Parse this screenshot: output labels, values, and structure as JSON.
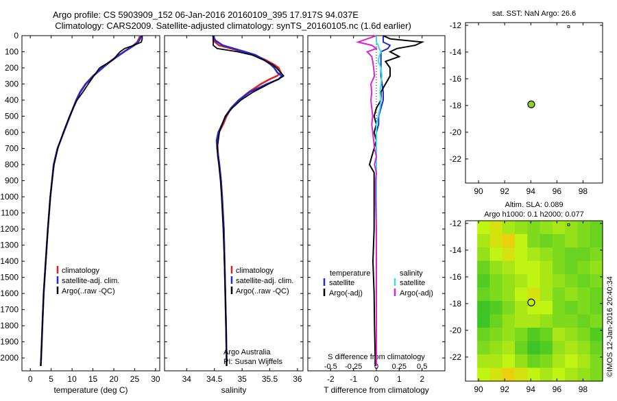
{
  "title": {
    "line1": "Argo profile: CS 5903909_152 06-Jan-2016 20160109_395 17.917S 94.037E",
    "line2": "Climatology: CARS2009. Satellite-adjusted climatology: synTS_20160105.nc (1.6d earlier)"
  },
  "colors": {
    "climatology": "#e11f1f",
    "satellite": "#1f2ad6",
    "argo": "#000000",
    "sal_satellite": "#2fe0e6",
    "sal_argo": "#e020d8",
    "marker_fill": "#8fd12a"
  },
  "annotations": {
    "owner": "Argo Australia",
    "pi": "PI: Susan Wijffels",
    "stamp": "©IMOS 12-Jan-2016 20:40:34"
  },
  "chart_data": [
    {
      "id": "temperature",
      "type": "line",
      "xlabel": "temperature (deg C)",
      "xlim": [
        -2,
        31
      ],
      "xticks": [
        0,
        5,
        10,
        15,
        20,
        25,
        30
      ],
      "ylim": [
        0,
        2080
      ],
      "yticks": [
        0,
        100,
        200,
        300,
        400,
        500,
        600,
        700,
        800,
        900,
        1000,
        1100,
        1200,
        1300,
        1400,
        1500,
        1600,
        1700,
        1800,
        1900,
        2000
      ],
      "legend": [
        "climatology",
        "satellite-adj. clim.",
        "Argo(..raw -QC)"
      ],
      "depth": [
        0,
        20,
        40,
        60,
        80,
        100,
        150,
        200,
        250,
        300,
        350,
        400,
        500,
        600,
        700,
        800,
        900,
        1000,
        1200,
        1400,
        1600,
        1800,
        2000,
        2050
      ],
      "series": [
        {
          "name": "climatology",
          "color_key": "climatology",
          "values": [
            26.3,
            26.0,
            25.6,
            24.7,
            23.6,
            22.4,
            19.6,
            17.2,
            15.0,
            13.2,
            11.9,
            11.0,
            9.5,
            8.0,
            6.5,
            5.6,
            5.2,
            4.8,
            4.2,
            3.7,
            3.2,
            2.9,
            2.6,
            2.5
          ]
        },
        {
          "name": "satellite-adj. clim.",
          "color_key": "satellite",
          "values": [
            26.6,
            26.3,
            25.8,
            24.9,
            23.7,
            22.5,
            19.7,
            17.3,
            15.1,
            13.3,
            12.0,
            11.0,
            9.5,
            8.0,
            6.5,
            5.6,
            5.2,
            4.8,
            4.2,
            3.7,
            3.2,
            2.9,
            2.6,
            2.5
          ]
        },
        {
          "name": "Argo(..raw -QC)",
          "color_key": "argo",
          "values": [
            26.8,
            26.8,
            26.6,
            24.8,
            22.6,
            21.5,
            19.8,
            16.6,
            15.2,
            13.9,
            12.6,
            11.2,
            9.4,
            7.9,
            6.6,
            5.7,
            5.2,
            4.8,
            4.2,
            3.7,
            3.2,
            2.9,
            2.6,
            2.5
          ]
        }
      ]
    },
    {
      "id": "salinity",
      "type": "line",
      "xlabel": "salinity",
      "xlim": [
        33.6,
        36.1
      ],
      "xticks": [
        34,
        34.5,
        35,
        35.5,
        36
      ],
      "ylim": [
        0,
        2080
      ],
      "legend": [
        "climatology",
        "satellite-adj. clim.",
        "Argo(..raw -QC)"
      ],
      "depth": [
        0,
        30,
        60,
        80,
        100,
        120,
        150,
        180,
        200,
        230,
        250,
        270,
        300,
        350,
        400,
        450,
        500,
        550,
        600,
        650,
        700,
        750,
        800,
        900,
        1000,
        1200,
        1500,
        1800,
        2000,
        2050
      ],
      "series": [
        {
          "name": "climatology",
          "color_key": "climatology",
          "values": [
            34.48,
            34.48,
            34.58,
            34.8,
            35.02,
            35.22,
            35.42,
            35.58,
            35.66,
            35.7,
            35.63,
            35.5,
            35.34,
            35.12,
            34.94,
            34.8,
            34.72,
            34.66,
            34.58,
            34.55,
            34.56,
            34.57,
            34.59,
            34.62,
            34.64,
            34.67,
            34.69,
            34.71,
            34.72,
            34.72
          ]
        },
        {
          "name": "satellite-adj. clim.",
          "color_key": "satellite",
          "values": [
            34.47,
            34.52,
            34.65,
            34.85,
            35.05,
            35.24,
            35.4,
            35.52,
            35.58,
            35.64,
            35.72,
            35.66,
            35.45,
            35.14,
            34.94,
            34.8,
            34.7,
            34.64,
            34.57,
            34.54,
            34.55,
            34.57,
            34.59,
            34.62,
            34.64,
            34.67,
            34.69,
            34.71,
            34.72,
            34.72
          ]
        },
        {
          "name": "Argo(..raw -QC)",
          "color_key": "argo",
          "values": [
            34.48,
            34.48,
            34.48,
            34.55,
            34.92,
            35.18,
            35.38,
            35.55,
            35.62,
            35.7,
            35.75,
            35.66,
            35.48,
            35.2,
            34.98,
            34.82,
            34.7,
            34.64,
            34.59,
            34.57,
            34.55,
            34.56,
            34.58,
            34.61,
            34.63,
            34.66,
            34.69,
            34.71,
            34.72,
            34.72
          ]
        }
      ]
    },
    {
      "id": "difference",
      "type": "line",
      "xlabel": "T difference from climatology",
      "top_label": "S difference from climatology",
      "xlim_T": [
        -3,
        3
      ],
      "xticks_T": [
        -2,
        -1,
        0,
        1,
        2
      ],
      "xlim_S": [
        -0.75,
        0.75
      ],
      "xticks_S": [
        "-0.5",
        "-0.25",
        "0",
        "0.25",
        "0.5"
      ],
      "legend_headers": [
        "temperature",
        "salinity"
      ],
      "legend": [
        "satellite",
        "Argo(-adj)",
        "satellite",
        "Argo(-adj)"
      ],
      "depth": [
        0,
        20,
        40,
        60,
        80,
        100,
        130,
        160,
        200,
        250,
        300,
        350,
        400,
        450,
        500,
        550,
        600,
        650,
        700,
        750,
        800,
        850,
        900,
        1000,
        1200,
        1400,
        1600,
        1800,
        2000,
        2050
      ],
      "series": [
        {
          "name": "satellite",
          "group": "temperature",
          "color_key": "satellite",
          "values": [
            0.3,
            0.3,
            0.3,
            0.6,
            0.5,
            0.2,
            0.2,
            0.2,
            0.2,
            0.2,
            0.25,
            0.3,
            0.3,
            0.2,
            0.1,
            0.1,
            0.0,
            0.0,
            0.0,
            0.0,
            0.0,
            0.0,
            0.0,
            0.0,
            0.0,
            0.0,
            0.0,
            0.0,
            0.0,
            0.0
          ]
        },
        {
          "name": "Argo(-adj)",
          "group": "temperature",
          "color_key": "argo",
          "values": [
            0.3,
            0.6,
            2.0,
            1.7,
            0.9,
            0.6,
            1.0,
            0.4,
            0.6,
            0.6,
            0.4,
            0.2,
            0.2,
            0.0,
            -0.1,
            0.0,
            -0.1,
            0.0,
            -0.1,
            -0.2,
            -0.3,
            -0.1,
            -0.1,
            -0.1,
            -0.1,
            -0.15,
            -0.1,
            -0.08,
            -0.05,
            -0.05
          ]
        },
        {
          "name": "satellite",
          "group": "salinity",
          "color_key": "sal_satellite",
          "values": [
            0.0,
            0.0,
            0.0,
            0.02,
            0.03,
            0.05,
            0.03,
            0.02,
            0.05,
            0.06,
            0.05,
            0.04,
            0.05,
            0.04,
            0.02,
            0.0,
            0.0,
            0.0,
            0.0,
            0.0,
            0.0,
            0.0,
            0.0,
            0.0,
            0.0,
            0.0,
            0.0,
            0.0,
            0.0,
            0.0
          ]
        },
        {
          "name": "Argo(-adj)",
          "group": "salinity",
          "color_key": "sal_argo",
          "values": [
            0.0,
            -0.1,
            -0.2,
            -0.05,
            0.0,
            -0.1,
            -0.05,
            -0.04,
            -0.03,
            -0.02,
            -0.06,
            -0.05,
            -0.06,
            -0.05,
            -0.04,
            -0.05,
            -0.04,
            -0.03,
            -0.02,
            0.0,
            -0.02,
            0.0,
            -0.01,
            -0.01,
            0.0,
            0.0,
            0.0,
            0.0,
            0.0,
            0.0
          ]
        }
      ]
    },
    {
      "id": "sst",
      "type": "scatter",
      "title": "sat. SST: NaN Argo: 26.6",
      "xlim": [
        89,
        99.5
      ],
      "xticks": [
        90,
        92,
        94,
        96,
        98
      ],
      "ylim": [
        -23.8,
        -11.8
      ],
      "yticks": [
        -12,
        -14,
        -16,
        -18,
        -20,
        -22
      ],
      "points": [
        {
          "x": 94.037,
          "y": -17.917
        },
        {
          "x": 96.9,
          "y": -12.1
        }
      ]
    },
    {
      "id": "sla",
      "type": "heatmap",
      "title1": "Altim. SLA: 0.089",
      "title2": "Argo h1000: 0.1 h2000: 0.077",
      "xlim": [
        89,
        99.5
      ],
      "xticks": [
        90,
        92,
        94,
        96,
        98
      ],
      "ylim": [
        -23.8,
        -11.8
      ],
      "yticks": [
        -12,
        -14,
        -16,
        -18,
        -20,
        -22
      ],
      "points": [
        {
          "x": 94.037,
          "y": -17.917
        },
        {
          "x": 96.9,
          "y": -12.1
        }
      ],
      "field": [
        [
          0.09,
          0.1,
          0.08,
          0.07,
          0.06,
          0.07,
          0.08,
          0.07,
          0.06,
          0.05
        ],
        [
          0.08,
          0.1,
          0.11,
          0.09,
          0.06,
          0.05,
          0.06,
          0.07,
          0.06,
          0.05
        ],
        [
          0.07,
          0.09,
          0.1,
          0.09,
          0.08,
          0.07,
          0.06,
          0.05,
          0.05,
          0.06
        ],
        [
          0.05,
          0.07,
          0.08,
          0.09,
          0.09,
          0.08,
          0.06,
          0.05,
          0.06,
          0.07
        ],
        [
          0.04,
          0.06,
          0.07,
          0.08,
          0.09,
          0.08,
          0.07,
          0.06,
          0.05,
          0.06
        ],
        [
          0.05,
          0.06,
          0.07,
          0.09,
          0.1,
          0.08,
          0.06,
          0.07,
          0.06,
          0.05
        ],
        [
          0.03,
          0.04,
          0.06,
          0.08,
          0.09,
          0.09,
          0.06,
          0.05,
          0.06,
          0.05
        ],
        [
          0.03,
          0.05,
          0.07,
          0.08,
          0.08,
          0.07,
          0.06,
          0.06,
          0.05,
          0.06
        ],
        [
          0.05,
          0.06,
          0.07,
          0.06,
          0.04,
          0.05,
          0.08,
          0.07,
          0.06,
          0.04
        ],
        [
          0.06,
          0.07,
          0.08,
          0.05,
          0.03,
          0.04,
          0.07,
          0.08,
          0.07,
          0.05
        ],
        [
          0.08,
          0.08,
          0.09,
          0.07,
          0.05,
          0.06,
          0.08,
          0.09,
          0.08,
          0.06
        ],
        [
          0.09,
          0.1,
          0.11,
          0.1,
          0.09,
          0.08,
          0.09,
          0.08,
          0.07,
          0.06
        ]
      ],
      "field_range": [
        0.02,
        0.12
      ]
    }
  ]
}
